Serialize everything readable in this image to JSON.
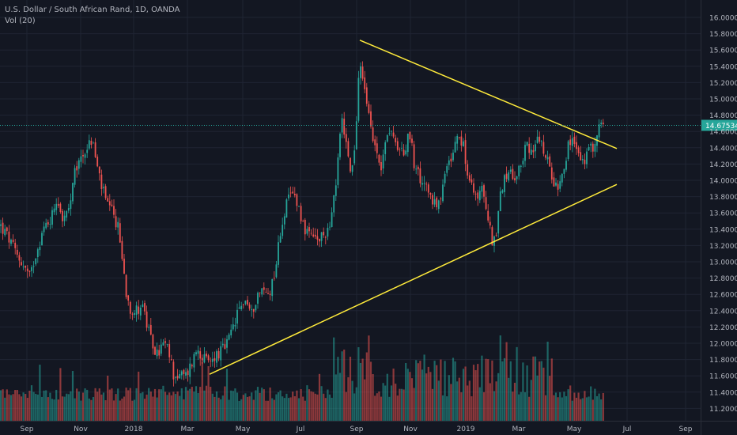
{
  "legend": {
    "title": "U.S. Dollar / South African Rand, 1D, OANDA",
    "volume": "Vol (20)"
  },
  "colors": {
    "background": "#131722",
    "grid": "#1f2433",
    "axis_text": "#b2b5be",
    "up": "#26a69a",
    "down": "#ef5350",
    "trendline": "#ffeb3b",
    "price_line": "#26a69a"
  },
  "chart_data": {
    "type": "candlestick",
    "title": "U.S. Dollar / South African Rand, 1D, OANDA",
    "y_axis": {
      "labels": [
        "16.00000",
        "15.80000",
        "15.60000",
        "15.40000",
        "15.20000",
        "15.00000",
        "14.80000",
        "14.60000",
        "14.40000",
        "14.20000",
        "14.00000",
        "13.80000",
        "13.60000",
        "13.40000",
        "13.20000",
        "13.00000",
        "12.80000",
        "12.60000",
        "12.40000",
        "12.20000",
        "12.00000",
        "11.80000",
        "11.60000",
        "11.40000",
        "11.20000"
      ],
      "range": [
        11.11,
        16.1
      ]
    },
    "x_axis": {
      "labels": [
        "Sep",
        "Nov",
        "2018",
        "Mar",
        "May",
        "Jul",
        "Sep",
        "Nov",
        "2019",
        "Mar",
        "May",
        "Jul",
        "Sep"
      ]
    },
    "current_price": {
      "value": 14.675,
      "label": "14.67534"
    },
    "close_path": [
      [
        0,
        13.45
      ],
      [
        10,
        13.3
      ],
      [
        20,
        13.1
      ],
      [
        30,
        12.95
      ],
      [
        38,
        12.8
      ],
      [
        45,
        13.1
      ],
      [
        55,
        13.4
      ],
      [
        65,
        13.55
      ],
      [
        72,
        13.8
      ],
      [
        80,
        13.5
      ],
      [
        88,
        13.65
      ],
      [
        95,
        14.1
      ],
      [
        103,
        14.3
      ],
      [
        110,
        14.4
      ],
      [
        117,
        14.5
      ],
      [
        122,
        14.2
      ],
      [
        128,
        13.95
      ],
      [
        135,
        13.7
      ],
      [
        142,
        13.6
      ],
      [
        150,
        13.4
      ],
      [
        155,
        13.0
      ],
      [
        160,
        12.6
      ],
      [
        166,
        12.4
      ],
      [
        173,
        12.4
      ],
      [
        180,
        12.5
      ],
      [
        186,
        12.2
      ],
      [
        192,
        12.0
      ],
      [
        199,
        11.85
      ],
      [
        206,
        12.0
      ],
      [
        213,
        11.9
      ],
      [
        220,
        11.6
      ],
      [
        228,
        11.6
      ],
      [
        235,
        11.6
      ],
      [
        242,
        11.75
      ],
      [
        250,
        11.95
      ],
      [
        258,
        11.8
      ],
      [
        265,
        11.75
      ],
      [
        272,
        11.85
      ],
      [
        280,
        11.9
      ],
      [
        288,
        12.0
      ],
      [
        295,
        12.2
      ],
      [
        302,
        12.4
      ],
      [
        310,
        12.55
      ],
      [
        318,
        12.35
      ],
      [
        325,
        12.6
      ],
      [
        333,
        12.65
      ],
      [
        340,
        12.6
      ],
      [
        348,
        12.9
      ],
      [
        355,
        13.4
      ],
      [
        362,
        13.7
      ],
      [
        370,
        13.85
      ],
      [
        376,
        13.75
      ],
      [
        382,
        13.5
      ],
      [
        390,
        13.3
      ],
      [
        396,
        13.3
      ],
      [
        402,
        13.25
      ],
      [
        408,
        13.3
      ],
      [
        414,
        13.4
      ],
      [
        420,
        13.6
      ],
      [
        424,
        13.9
      ],
      [
        428,
        14.3
      ],
      [
        433,
        14.8
      ],
      [
        438,
        14.4
      ],
      [
        444,
        14.1
      ],
      [
        449,
        14.4
      ],
      [
        454,
        15.4
      ],
      [
        459,
        15.3
      ],
      [
        464,
        14.9
      ],
      [
        470,
        14.6
      ],
      [
        476,
        14.4
      ],
      [
        482,
        14.2
      ],
      [
        488,
        14.5
      ],
      [
        494,
        14.7
      ],
      [
        500,
        14.4
      ],
      [
        506,
        14.3
      ],
      [
        512,
        14.4
      ],
      [
        518,
        14.6
      ],
      [
        524,
        14.2
      ],
      [
        530,
        14.05
      ],
      [
        536,
        14.0
      ],
      [
        542,
        13.85
      ],
      [
        548,
        13.75
      ],
      [
        555,
        13.7
      ],
      [
        561,
        14.0
      ],
      [
        567,
        14.2
      ],
      [
        573,
        14.3
      ],
      [
        580,
        14.55
      ],
      [
        586,
        14.4
      ],
      [
        592,
        14.0
      ],
      [
        598,
        13.9
      ],
      [
        604,
        13.8
      ],
      [
        610,
        13.9
      ],
      [
        616,
        13.65
      ],
      [
        622,
        13.25
      ],
      [
        628,
        13.4
      ],
      [
        634,
        13.9
      ],
      [
        640,
        14.1
      ],
      [
        646,
        14.05
      ],
      [
        652,
        13.9
      ],
      [
        658,
        14.2
      ],
      [
        664,
        14.4
      ],
      [
        670,
        14.4
      ],
      [
        676,
        14.4
      ],
      [
        682,
        14.5
      ],
      [
        688,
        14.3
      ],
      [
        694,
        14.2
      ],
      [
        700,
        14.0
      ],
      [
        706,
        13.95
      ],
      [
        712,
        14.15
      ],
      [
        718,
        14.4
      ],
      [
        724,
        14.5
      ],
      [
        730,
        14.35
      ],
      [
        736,
        14.2
      ],
      [
        742,
        14.3
      ],
      [
        748,
        14.4
      ],
      [
        754,
        14.5
      ],
      [
        758,
        14.7
      ],
      [
        763,
        14.65
      ]
    ],
    "trendlines": [
      {
        "from": [
          455,
          15.72
        ],
        "to": [
          780,
          14.39
        ]
      },
      {
        "from": [
          265,
          11.62
        ],
        "to": [
          780,
          13.95
        ]
      }
    ],
    "volume": {
      "label": "Vol (20)"
    }
  }
}
